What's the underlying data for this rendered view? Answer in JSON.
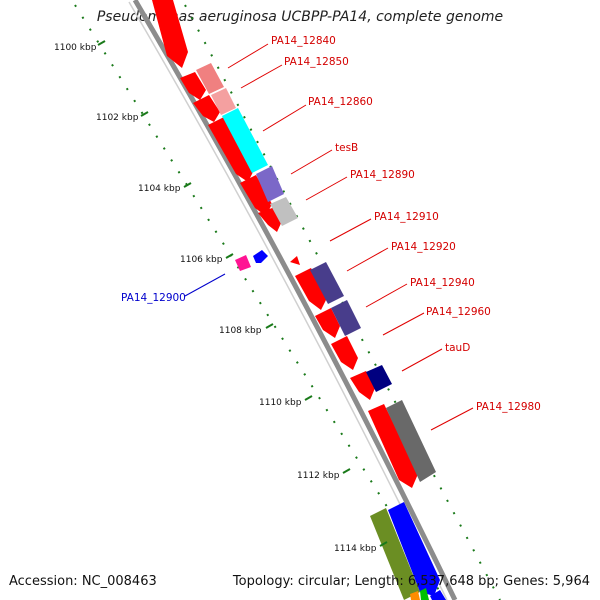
{
  "title": "Pseudomonas aeruginosa UCBPP-PA14, complete genome",
  "footer": {
    "accession": "Accession: NC_008463",
    "topology": "Topology: circular; Length: 6,537,648 bp; Genes: 5,964"
  },
  "kbp_labels": [
    "1100 kbp",
    "1102 kbp",
    "1104 kbp",
    "1106 kbp",
    "1108 kbp",
    "1110 kbp",
    "1112 kbp",
    "1114 kbp"
  ],
  "gene_labels": [
    "PA14_12840",
    "PA14_12850",
    "PA14_12860",
    "tesB",
    "PA14_12890",
    "PA14_12910",
    "PA14_12920",
    "PA14_12940",
    "PA14_12960",
    "tauD",
    "PA14_12980",
    "PA14_12900"
  ],
  "colors": {
    "backbone": "#8c8c8c",
    "forward_cds": "#ff0000",
    "label_red": "#d40000",
    "label_blue": "#0000cc",
    "tick_green": "#1a7a1a"
  }
}
